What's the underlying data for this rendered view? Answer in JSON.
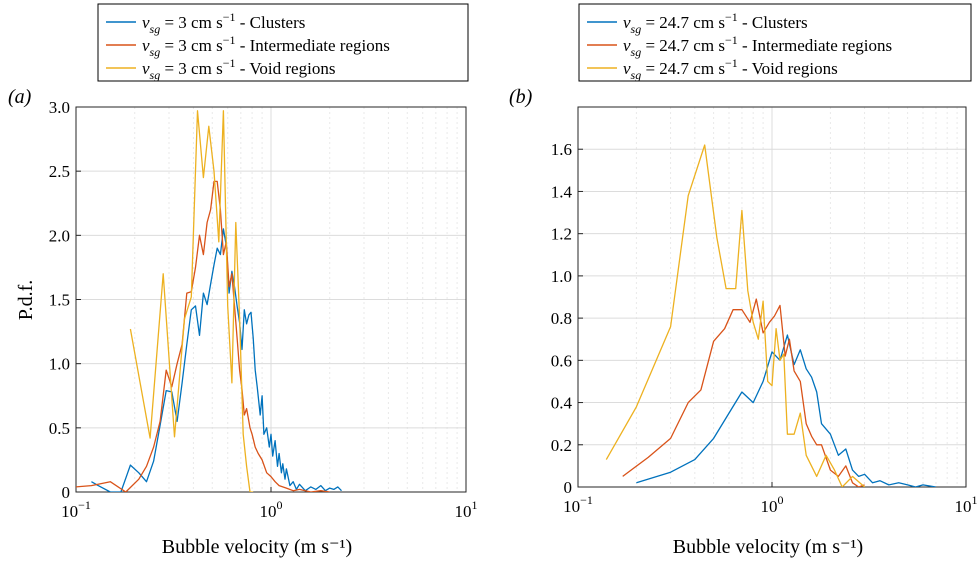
{
  "chart_data": [
    {
      "panel_label": "(a)",
      "type": "line",
      "x_scale": "log",
      "xlim": [
        0.1,
        10
      ],
      "ylim": [
        0,
        3.0
      ],
      "xlabel": "Bubble velocity (m s⁻¹)",
      "ylabel": "P.d.f.",
      "grid": true,
      "legend_position": "top",
      "xticks": [
        {
          "value": 0.1,
          "base": "10",
          "exp": "−1"
        },
        {
          "value": 1,
          "base": "10",
          "exp": "0"
        },
        {
          "value": 10,
          "base": "10",
          "exp": "1"
        }
      ],
      "yticks": [
        {
          "value": 0,
          "label": "0"
        },
        {
          "value": 0.5,
          "label": "0.5"
        },
        {
          "value": 1.0,
          "label": "1.0"
        },
        {
          "value": 1.5,
          "label": "1.5"
        },
        {
          "value": 2.0,
          "label": "2.0"
        },
        {
          "value": 2.5,
          "label": "2.5"
        },
        {
          "value": 3.0,
          "label": "3.0"
        }
      ],
      "series": [
        {
          "name": "3 cm s⁻¹ - Clusters",
          "legend_prefix": "v",
          "legend_sub": "sg",
          "legend_text": " = 3 cm s",
          "legend_sup": "−1",
          "legend_suffix": " - Clusters",
          "color": "#0072bd",
          "x": [
            0.12,
            0.13,
            0.15,
            0.17,
            0.19,
            0.21,
            0.23,
            0.25,
            0.27,
            0.29,
            0.31,
            0.33,
            0.35,
            0.37,
            0.39,
            0.41,
            0.43,
            0.45,
            0.47,
            0.49,
            0.51,
            0.53,
            0.55,
            0.57,
            0.59,
            0.61,
            0.63,
            0.65,
            0.67,
            0.69,
            0.71,
            0.73,
            0.75,
            0.77,
            0.79,
            0.81,
            0.83,
            0.85,
            0.88,
            0.9,
            0.92,
            0.95,
            0.98,
            1.0,
            1.02,
            1.05,
            1.08,
            1.1,
            1.13,
            1.15,
            1.18,
            1.2,
            1.25,
            1.3,
            1.35,
            1.4,
            1.5,
            1.6,
            1.7,
            1.8,
            1.9,
            2.0,
            2.1,
            2.2,
            2.3
          ],
          "values": [
            0.08,
            0.05,
            0.0,
            0.0,
            0.21,
            0.15,
            0.08,
            0.24,
            0.52,
            0.79,
            0.78,
            0.55,
            0.85,
            1.15,
            1.42,
            1.45,
            1.22,
            1.55,
            1.46,
            1.62,
            1.77,
            1.9,
            1.85,
            2.05,
            1.92,
            1.55,
            1.72,
            1.6,
            1.45,
            1.32,
            1.11,
            1.42,
            1.31,
            1.38,
            1.4,
            1.2,
            0.95,
            0.82,
            0.6,
            0.75,
            0.45,
            0.5,
            0.35,
            0.45,
            0.28,
            0.4,
            0.2,
            0.3,
            0.15,
            0.22,
            0.1,
            0.18,
            0.05,
            0.08,
            0.02,
            0.06,
            0.01,
            0.04,
            0.02,
            0.05,
            0.01,
            0.03,
            0.02,
            0.04,
            0.01
          ]
        },
        {
          "name": "3 cm s⁻¹ - Intermediate regions",
          "legend_prefix": "v",
          "legend_sub": "sg",
          "legend_text": " = 3 cm s",
          "legend_sup": "−1",
          "legend_suffix": " - Intermediate regions",
          "color": "#d95319",
          "x": [
            0.1,
            0.12,
            0.15,
            0.18,
            0.21,
            0.23,
            0.25,
            0.27,
            0.29,
            0.31,
            0.33,
            0.35,
            0.37,
            0.39,
            0.41,
            0.43,
            0.45,
            0.47,
            0.49,
            0.51,
            0.53,
            0.55,
            0.57,
            0.59,
            0.61,
            0.63,
            0.65,
            0.67,
            0.69,
            0.71,
            0.73,
            0.75,
            0.78,
            0.8,
            0.83,
            0.86,
            0.9,
            0.95,
            1.0,
            1.05,
            1.1,
            1.2,
            1.3,
            1.4,
            1.5,
            1.6,
            1.8,
            2.0
          ],
          "values": [
            0.04,
            0.05,
            0.08,
            0.0,
            0.1,
            0.2,
            0.35,
            0.55,
            0.95,
            0.82,
            1.0,
            1.15,
            1.55,
            1.56,
            1.75,
            2.0,
            1.85,
            2.1,
            2.2,
            2.42,
            2.42,
            2.2,
            1.85,
            1.95,
            1.6,
            1.7,
            1.45,
            1.2,
            0.95,
            0.8,
            0.6,
            0.65,
            0.5,
            0.45,
            0.35,
            0.3,
            0.25,
            0.15,
            0.12,
            0.08,
            0.05,
            0.03,
            0.01,
            0.02,
            0.01,
            0.0,
            0.01,
            0.0
          ]
        },
        {
          "name": "3 cm s⁻¹ - Void regions",
          "legend_prefix": "v",
          "legend_sub": "sg",
          "legend_text": " = 3 cm s",
          "legend_sup": "−1",
          "legend_suffix": " - Void regions",
          "color": "#edb120",
          "x": [
            0.19,
            0.24,
            0.28,
            0.32,
            0.36,
            0.39,
            0.42,
            0.45,
            0.48,
            0.51,
            0.54,
            0.57,
            0.6,
            0.63,
            0.66,
            0.69,
            0.72,
            0.75,
            0.78,
            0.81
          ],
          "values": [
            1.27,
            0.42,
            1.7,
            0.43,
            1.35,
            1.52,
            2.97,
            2.45,
            2.85,
            2.5,
            1.95,
            2.97,
            1.45,
            0.85,
            2.1,
            1.35,
            0.45,
            0.2,
            0.0,
            0.0
          ]
        }
      ]
    },
    {
      "panel_label": "(b)",
      "type": "line",
      "x_scale": "log",
      "xlim": [
        0.1,
        10
      ],
      "ylim": [
        0,
        1.8
      ],
      "xlabel": "Bubble velocity (m s⁻¹)",
      "ylabel": "",
      "grid": true,
      "legend_position": "top",
      "xticks": [
        {
          "value": 0.1,
          "base": "10",
          "exp": "−1"
        },
        {
          "value": 1,
          "base": "10",
          "exp": "0"
        },
        {
          "value": 10,
          "base": "10",
          "exp": "1"
        }
      ],
      "yticks": [
        {
          "value": 0,
          "label": "0"
        },
        {
          "value": 0.2,
          "label": "0.2"
        },
        {
          "value": 0.4,
          "label": "0.4"
        },
        {
          "value": 0.6,
          "label": "0.6"
        },
        {
          "value": 0.8,
          "label": "0.8"
        },
        {
          "value": 1.0,
          "label": "1.0"
        },
        {
          "value": 1.2,
          "label": "1.2"
        },
        {
          "value": 1.4,
          "label": "1.4"
        },
        {
          "value": 1.6,
          "label": "1.6"
        }
      ],
      "series": [
        {
          "name": "24.7 cm s⁻¹ - Clusters",
          "legend_prefix": "v",
          "legend_sub": "sg",
          "legend_text": " = 24.7 cm s",
          "legend_sup": "−1",
          "legend_suffix": " - Clusters",
          "color": "#0072bd",
          "x": [
            0.2,
            0.3,
            0.4,
            0.5,
            0.6,
            0.7,
            0.8,
            0.9,
            1.0,
            1.1,
            1.2,
            1.3,
            1.4,
            1.5,
            1.6,
            1.7,
            1.8,
            2.0,
            2.2,
            2.4,
            2.6,
            2.8,
            3.0,
            3.3,
            3.6,
            4.0,
            4.5,
            5.0,
            5.5,
            6.0,
            7.0
          ],
          "values": [
            0.02,
            0.07,
            0.13,
            0.23,
            0.35,
            0.45,
            0.4,
            0.5,
            0.64,
            0.6,
            0.72,
            0.58,
            0.65,
            0.56,
            0.52,
            0.45,
            0.3,
            0.25,
            0.15,
            0.18,
            0.08,
            0.05,
            0.06,
            0.02,
            0.03,
            0.01,
            0.02,
            0.01,
            0.0,
            0.01,
            0.0
          ]
        },
        {
          "name": "24.7 cm s⁻¹ - Intermediate regions",
          "legend_prefix": "v",
          "legend_sub": "sg",
          "legend_text": " = 24.7 cm s",
          "legend_sup": "−1",
          "legend_suffix": " - Intermediate regions",
          "color": "#d95319",
          "x": [
            0.17,
            0.23,
            0.3,
            0.37,
            0.43,
            0.5,
            0.57,
            0.63,
            0.7,
            0.77,
            0.83,
            0.9,
            0.97,
            1.03,
            1.1,
            1.17,
            1.23,
            1.3,
            1.4,
            1.5,
            1.6,
            1.7,
            1.8,
            2.0,
            2.2,
            2.4,
            2.6,
            2.8,
            3.0
          ],
          "values": [
            0.05,
            0.14,
            0.23,
            0.4,
            0.46,
            0.69,
            0.75,
            0.84,
            0.84,
            0.78,
            0.89,
            0.73,
            0.78,
            0.81,
            0.86,
            0.62,
            0.7,
            0.55,
            0.5,
            0.3,
            0.24,
            0.2,
            0.2,
            0.08,
            0.05,
            0.1,
            0.02,
            0.0,
            0.01
          ]
        },
        {
          "name": "24.7 cm s⁻¹ - Void regions",
          "legend_prefix": "v",
          "legend_sub": "sg",
          "legend_text": " = 24.7 cm s",
          "legend_sup": "−1",
          "legend_suffix": " - Void regions",
          "color": "#edb120",
          "x": [
            0.14,
            0.2,
            0.3,
            0.37,
            0.45,
            0.52,
            0.58,
            0.65,
            0.7,
            0.75,
            0.8,
            0.85,
            0.9,
            0.95,
            1.0,
            1.05,
            1.1,
            1.15,
            1.2,
            1.3,
            1.4,
            1.5,
            1.7,
            1.9,
            2.1,
            2.3,
            2.6,
            3.0
          ],
          "values": [
            0.13,
            0.38,
            0.76,
            1.38,
            1.62,
            1.18,
            0.94,
            0.94,
            1.31,
            0.93,
            0.78,
            0.7,
            0.88,
            0.5,
            0.48,
            0.75,
            0.6,
            0.63,
            0.25,
            0.25,
            0.35,
            0.15,
            0.05,
            0.15,
            0.08,
            0.0,
            0.05,
            0.0
          ]
        }
      ]
    }
  ]
}
